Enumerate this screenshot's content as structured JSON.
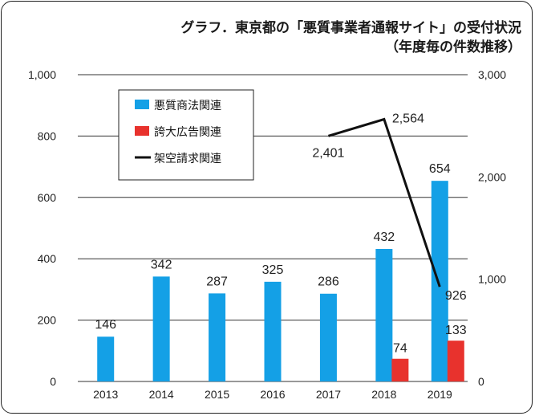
{
  "title": {
    "line1": "グラフ．東京都の「悪質事業者通報サイト」の受付状況",
    "line2": "（年度毎の件数推移）"
  },
  "chart_data": {
    "type": "bar",
    "categories": [
      "2013",
      "2014",
      "2015",
      "2016",
      "2017",
      "2018",
      "2019"
    ],
    "series": [
      {
        "name": "悪質商法関連",
        "type": "bar",
        "axis": "left",
        "color": "#14a0e6",
        "values": [
          146,
          342,
          287,
          325,
          286,
          432,
          654
        ]
      },
      {
        "name": "誇大広告関連",
        "type": "bar",
        "axis": "left",
        "color": "#e8322d",
        "values": [
          null,
          null,
          null,
          null,
          null,
          74,
          133
        ]
      },
      {
        "name": "架空請求関連",
        "type": "line",
        "axis": "right",
        "color": "#111111",
        "values": [
          null,
          null,
          null,
          null,
          2401,
          2564,
          926
        ]
      }
    ],
    "y_left": {
      "min": 0,
      "max": 1000,
      "ticks": [
        0,
        200,
        400,
        600,
        800,
        1000
      ],
      "tick_labels": [
        "0",
        "200",
        "400",
        "600",
        "800",
        "1,000"
      ]
    },
    "y_right": {
      "min": 0,
      "max": 3000,
      "ticks": [
        0,
        1000,
        2000,
        3000
      ],
      "tick_labels": [
        "0",
        "1,000",
        "2,000",
        "3,000"
      ]
    },
    "data_labels": {
      "悪質商法関連": [
        "146",
        "342",
        "287",
        "325",
        "286",
        "432",
        "654"
      ],
      "誇大広告関連": [
        null,
        null,
        null,
        null,
        null,
        "74",
        "133"
      ],
      "架空請求関連": [
        null,
        null,
        null,
        null,
        "2,401",
        "2,564",
        "926"
      ]
    },
    "grid": true,
    "legend_position": "top-left"
  }
}
